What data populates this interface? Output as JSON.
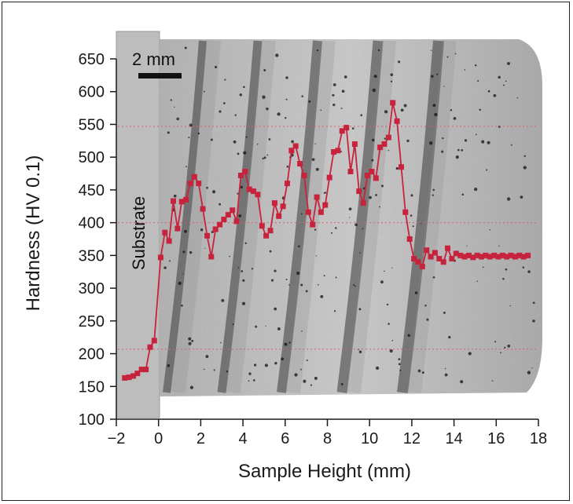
{
  "chart_data": {
    "type": "line",
    "title": "",
    "xlabel": "Sample Height (mm)",
    "ylabel": "Hardness (HV 0.1)",
    "xlim": [
      -2,
      18
    ],
    "ylim": [
      100,
      650
    ],
    "xticks": [
      -2,
      0,
      2,
      4,
      6,
      8,
      10,
      12,
      14,
      16,
      18
    ],
    "xtick_labels": [
      "−2",
      "0",
      "2",
      "4",
      "6",
      "8",
      "10",
      "12",
      "14",
      "16",
      "18"
    ],
    "yticks": [
      100,
      150,
      200,
      250,
      300,
      350,
      400,
      450,
      500,
      550,
      600,
      650
    ],
    "grid": false,
    "marker": "square",
    "colors": {
      "series": "#c8233c",
      "reference_lines": "#d9606a"
    },
    "annotations": {
      "substrate_label": "Substrate",
      "scale_bar_label": "2 mm"
    },
    "reference_lines_y": [
      547,
      400,
      207
    ],
    "series": [
      {
        "x": [
          -1.6,
          -1.4,
          -1.2,
          -1.0,
          -0.8,
          -0.6,
          -0.4,
          -0.2,
          0.1,
          0.3,
          0.5,
          0.7,
          0.9,
          1.1,
          1.3,
          1.5,
          1.7,
          1.9,
          2.1,
          2.3,
          2.5,
          2.7,
          2.9,
          3.1,
          3.3,
          3.5,
          3.7,
          3.9,
          4.1,
          4.3,
          4.5,
          4.7,
          4.9,
          5.1,
          5.3,
          5.5,
          5.7,
          5.9,
          6.1,
          6.3,
          6.5,
          6.7,
          6.9,
          7.1,
          7.3,
          7.5,
          7.7,
          7.9,
          8.1,
          8.3,
          8.5,
          8.7,
          8.9,
          9.1,
          9.3,
          9.5,
          9.7,
          9.9,
          10.1,
          10.3,
          10.5,
          10.7,
          10.9,
          11.1,
          11.3,
          11.5,
          11.7,
          11.9,
          12.1,
          12.3,
          12.5,
          12.7,
          12.9,
          13.1,
          13.3,
          13.5,
          13.7,
          13.9,
          14.1,
          14.3,
          14.5,
          14.7,
          14.9,
          15.1,
          15.3,
          15.5,
          15.7,
          15.9,
          16.1,
          16.3,
          16.5,
          16.7,
          16.9,
          17.1,
          17.3,
          17.5
        ],
        "y": [
          163,
          164,
          166,
          170,
          176,
          176,
          210,
          220,
          347,
          385,
          372,
          433,
          391,
          432,
          435,
          460,
          470,
          460,
          421,
          380,
          348,
          390,
          397,
          405,
          412,
          419,
          402,
          472,
          478,
          451,
          448,
          443,
          395,
          380,
          388,
          430,
          410,
          425,
          460,
          510,
          517,
          490,
          472,
          416,
          397,
          439,
          416,
          427,
          469,
          508,
          510,
          540,
          545,
          478,
          520,
          448,
          430,
          472,
          478,
          468,
          515,
          520,
          530,
          583,
          555,
          485,
          416,
          375,
          345,
          340,
          333,
          358,
          348,
          354,
          345,
          340,
          361,
          345,
          353,
          350,
          348,
          350,
          347,
          350,
          348,
          350,
          348,
          350,
          348,
          350,
          348,
          350,
          348,
          350,
          348,
          350
        ]
      }
    ]
  }
}
